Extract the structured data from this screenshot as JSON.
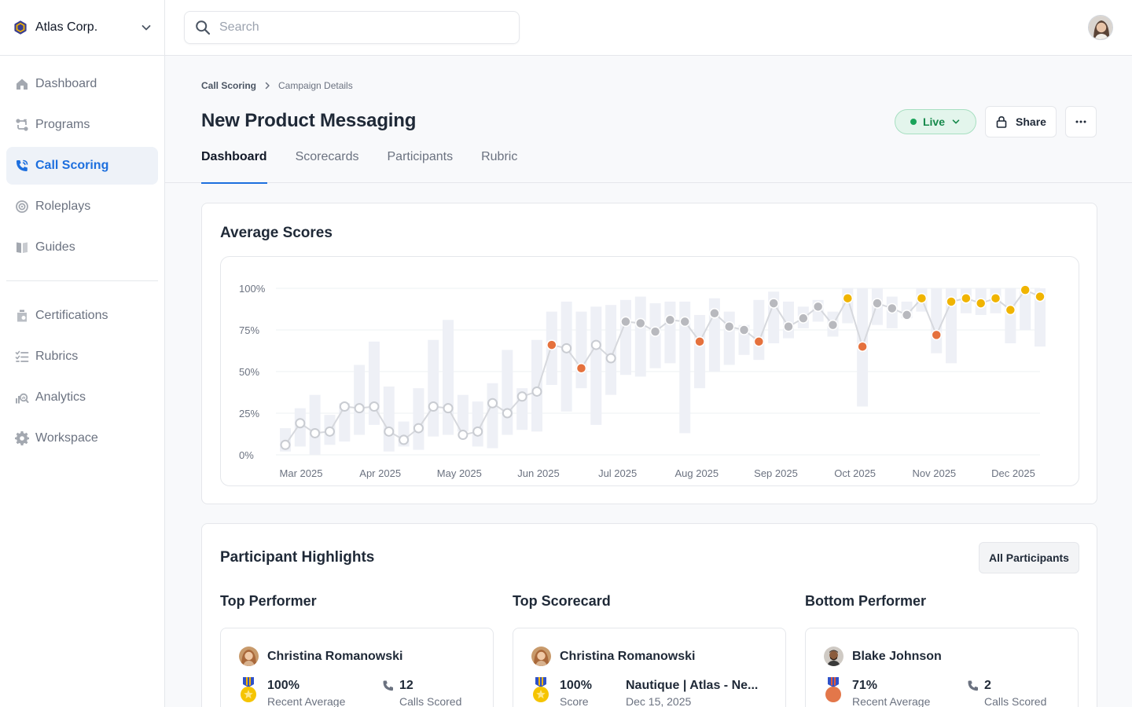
{
  "org": {
    "name": "Atlas Corp."
  },
  "search": {
    "placeholder": "Search"
  },
  "nav": {
    "primary": [
      {
        "label": "Dashboard",
        "icon": "home-icon"
      },
      {
        "label": "Programs",
        "icon": "programs-icon"
      },
      {
        "label": "Call Scoring",
        "icon": "phone-icon",
        "active": true
      },
      {
        "label": "Roleplays",
        "icon": "target-icon"
      },
      {
        "label": "Guides",
        "icon": "book-icon"
      }
    ],
    "secondary": [
      {
        "label": "Certifications",
        "icon": "certificate-icon"
      },
      {
        "label": "Rubrics",
        "icon": "checklist-icon"
      },
      {
        "label": "Analytics",
        "icon": "analytics-icon"
      },
      {
        "label": "Workspace",
        "icon": "gear-icon"
      }
    ]
  },
  "breadcrumb": {
    "parent": "Call Scoring",
    "current": "Campaign Details"
  },
  "page": {
    "title": "New Product Messaging"
  },
  "status": {
    "label": "Live",
    "color": "#1aa45a"
  },
  "actions": {
    "share_label": "Share"
  },
  "tabs": [
    {
      "label": "Dashboard",
      "active": true
    },
    {
      "label": "Scorecards"
    },
    {
      "label": "Participants"
    },
    {
      "label": "Rubric"
    }
  ],
  "chart_data": {
    "type": "line",
    "title": "Average Scores",
    "ylim": [
      0,
      100
    ],
    "y_ticks": [
      "100%",
      "75%",
      "50%",
      "25%",
      "0%"
    ],
    "x_tick_labels": [
      "Mar 2025",
      "Apr 2025",
      "May 2025",
      "Jun 2025",
      "Jul 2025",
      "Aug 2025",
      "Sep 2025",
      "Oct 2025",
      "Nov 2025",
      "Dec 2025"
    ],
    "grid": true,
    "legend": "none",
    "points": [
      {
        "x": 0,
        "score": 6,
        "lo": 2,
        "hi": 16,
        "tier": "white"
      },
      {
        "x": 1,
        "score": 19,
        "lo": 5,
        "hi": 28,
        "tier": "white"
      },
      {
        "x": 2,
        "score": 13,
        "lo": 0,
        "hi": 36,
        "tier": "white"
      },
      {
        "x": 3,
        "score": 14,
        "lo": 6,
        "hi": 24,
        "tier": "white"
      },
      {
        "x": 4,
        "score": 29,
        "lo": 8,
        "hi": 31,
        "tier": "white"
      },
      {
        "x": 5,
        "score": 28,
        "lo": 12,
        "hi": 54,
        "tier": "white"
      },
      {
        "x": 6,
        "score": 29,
        "lo": 18,
        "hi": 68,
        "tier": "white"
      },
      {
        "x": 7,
        "score": 14,
        "lo": 2,
        "hi": 41,
        "tier": "white"
      },
      {
        "x": 8,
        "score": 9,
        "lo": 5,
        "hi": 20,
        "tier": "white"
      },
      {
        "x": 9,
        "score": 16,
        "lo": 3,
        "hi": 40,
        "tier": "white"
      },
      {
        "x": 10,
        "score": 29,
        "lo": 11,
        "hi": 69,
        "tier": "white"
      },
      {
        "x": 11,
        "score": 28,
        "lo": 12,
        "hi": 81,
        "tier": "white"
      },
      {
        "x": 12,
        "score": 12,
        "lo": 14,
        "hi": 36,
        "tier": "white"
      },
      {
        "x": 13,
        "score": 14,
        "lo": 5,
        "hi": 32,
        "tier": "white"
      },
      {
        "x": 14,
        "score": 31,
        "lo": 4,
        "hi": 43,
        "tier": "white"
      },
      {
        "x": 15,
        "score": 25,
        "lo": 12,
        "hi": 63,
        "tier": "white"
      },
      {
        "x": 16,
        "score": 35,
        "lo": 15,
        "hi": 40,
        "tier": "white"
      },
      {
        "x": 17,
        "score": 38,
        "lo": 14,
        "hi": 69,
        "tier": "white"
      },
      {
        "x": 18,
        "score": 66,
        "lo": 42,
        "hi": 86,
        "tier": "orange"
      },
      {
        "x": 19,
        "score": 64,
        "lo": 26,
        "hi": 92,
        "tier": "white"
      },
      {
        "x": 20,
        "score": 52,
        "lo": 40,
        "hi": 86,
        "tier": "orange"
      },
      {
        "x": 21,
        "score": 66,
        "lo": 18,
        "hi": 89,
        "tier": "white"
      },
      {
        "x": 22,
        "score": 58,
        "lo": 36,
        "hi": 90,
        "tier": "white"
      },
      {
        "x": 23,
        "score": 80,
        "lo": 48,
        "hi": 93,
        "tier": "gray"
      },
      {
        "x": 24,
        "score": 79,
        "lo": 47,
        "hi": 95,
        "tier": "gray"
      },
      {
        "x": 25,
        "score": 74,
        "lo": 52,
        "hi": 91,
        "tier": "gray"
      },
      {
        "x": 26,
        "score": 81,
        "lo": 55,
        "hi": 92,
        "tier": "gray"
      },
      {
        "x": 27,
        "score": 80,
        "lo": 13,
        "hi": 92,
        "tier": "gray"
      },
      {
        "x": 28,
        "score": 68,
        "lo": 40,
        "hi": 84,
        "tier": "orange"
      },
      {
        "x": 29,
        "score": 85,
        "lo": 50,
        "hi": 94,
        "tier": "gray"
      },
      {
        "x": 30,
        "score": 77,
        "lo": 54,
        "hi": 86,
        "tier": "gray"
      },
      {
        "x": 31,
        "score": 75,
        "lo": 60,
        "hi": 78,
        "tier": "gray"
      },
      {
        "x": 32,
        "score": 68,
        "lo": 57,
        "hi": 93,
        "tier": "orange"
      },
      {
        "x": 33,
        "score": 91,
        "lo": 67,
        "hi": 98,
        "tier": "gray"
      },
      {
        "x": 34,
        "score": 77,
        "lo": 70,
        "hi": 92,
        "tier": "gray"
      },
      {
        "x": 35,
        "score": 82,
        "lo": 76,
        "hi": 89,
        "tier": "gray"
      },
      {
        "x": 36,
        "score": 89,
        "lo": 80,
        "hi": 93,
        "tier": "gray"
      },
      {
        "x": 37,
        "score": 78,
        "lo": 71,
        "hi": 86,
        "tier": "gray"
      },
      {
        "x": 38,
        "score": 94,
        "lo": 79,
        "hi": 100,
        "tier": "gold"
      },
      {
        "x": 39,
        "score": 65,
        "lo": 29,
        "hi": 100,
        "tier": "orange"
      },
      {
        "x": 40,
        "score": 91,
        "lo": 78,
        "hi": 100,
        "tier": "gray"
      },
      {
        "x": 41,
        "score": 88,
        "lo": 76,
        "hi": 95,
        "tier": "gray"
      },
      {
        "x": 42,
        "score": 84,
        "lo": 82,
        "hi": 92,
        "tier": "gray"
      },
      {
        "x": 43,
        "score": 94,
        "lo": 86,
        "hi": 100,
        "tier": "gold"
      },
      {
        "x": 44,
        "score": 72,
        "lo": 61,
        "hi": 100,
        "tier": "orange"
      },
      {
        "x": 45,
        "score": 92,
        "lo": 55,
        "hi": 100,
        "tier": "gold"
      },
      {
        "x": 46,
        "score": 94,
        "lo": 85,
        "hi": 100,
        "tier": "gold"
      },
      {
        "x": 47,
        "score": 91,
        "lo": 84,
        "hi": 100,
        "tier": "gold"
      },
      {
        "x": 48,
        "score": 94,
        "lo": 85,
        "hi": 100,
        "tier": "gold"
      },
      {
        "x": 49,
        "score": 87,
        "lo": 67,
        "hi": 100,
        "tier": "gold"
      },
      {
        "x": 50,
        "score": 99,
        "lo": 75,
        "hi": 100,
        "tier": "gold"
      },
      {
        "x": 51,
        "score": 95,
        "lo": 65,
        "hi": 100,
        "tier": "gold"
      }
    ]
  },
  "highlights": {
    "title": "Participant Highlights",
    "all_label": "All Participants",
    "columns": [
      {
        "heading": "Top Performer",
        "name": "Christina Romanowski",
        "stat1_value": "100%",
        "stat1_label": "Recent Average",
        "medal": "gold",
        "stat2_value": "12",
        "stat2_label": "Calls Scored"
      },
      {
        "heading": "Top Scorecard",
        "name": "Christina Romanowski",
        "stat1_value": "100%",
        "stat1_label": "Score",
        "medal": "gold",
        "stat2_value": "Nautique | Atlas - Ne...",
        "stat2_label": "Dec 15, 2025"
      },
      {
        "heading": "Bottom Performer",
        "name": "Blake Johnson",
        "stat1_value": "71%",
        "stat1_label": "Recent Average",
        "medal": "bronze",
        "stat2_value": "2",
        "stat2_label": "Calls Scored"
      }
    ]
  },
  "colors": {
    "accent": "#1d6fde",
    "gold": "#f0b400",
    "orange": "#e5713d",
    "gray": "#b8b9be",
    "range": "#eef0f6"
  }
}
